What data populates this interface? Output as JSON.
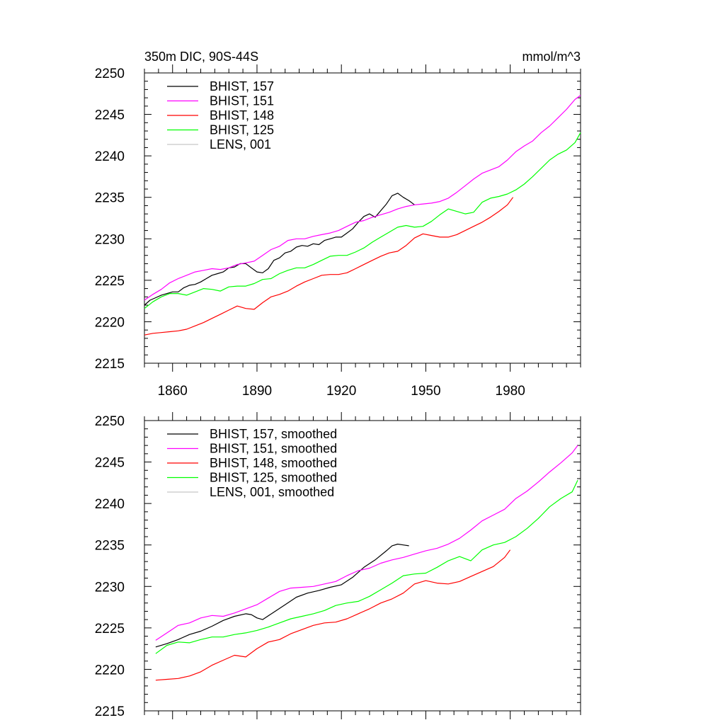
{
  "figure": {
    "title_left": "350m DIC, 90S-44S",
    "title_right": "mmol/m^3"
  },
  "chart_data": [
    {
      "type": "line",
      "xlim": [
        1850,
        2005
      ],
      "ylim": [
        2215,
        2250
      ],
      "x_ticks": [
        1860,
        1890,
        1920,
        1950,
        1980
      ],
      "x_tick_labels": [
        "1860",
        "1890",
        "1920",
        "1950",
        "1980"
      ],
      "y_ticks": [
        2215,
        2220,
        2225,
        2230,
        2235,
        2240,
        2245,
        2250
      ],
      "y_tick_labels": [
        "2215",
        "2220",
        "2225",
        "2230",
        "2235",
        "2240",
        "2245",
        "2250"
      ],
      "legend_position": "top-left",
      "grid": false,
      "series": [
        {
          "name": "BHIST, 157",
          "color": "#000000",
          "x": [
            1850,
            1852,
            1854,
            1856,
            1858,
            1860,
            1862,
            1864,
            1866,
            1868,
            1870,
            1872,
            1874,
            1876,
            1878,
            1880,
            1882,
            1884,
            1886,
            1888,
            1890,
            1892,
            1894,
            1896,
            1898,
            1900,
            1902,
            1904,
            1906,
            1908,
            1910,
            1912,
            1914,
            1916,
            1918,
            1920,
            1922,
            1924,
            1926,
            1928,
            1930,
            1932,
            1934,
            1936,
            1938,
            1940,
            1942,
            1944,
            1946
          ],
          "y": [
            2222.0,
            2222.6,
            2222.9,
            2223.2,
            2223.4,
            2223.6,
            2223.6,
            2224.1,
            2224.4,
            2224.5,
            2224.8,
            2225.2,
            2225.6,
            2225.8,
            2226.0,
            2226.5,
            2226.6,
            2227.0,
            2227.0,
            2226.5,
            2226.0,
            2225.9,
            2226.4,
            2227.4,
            2227.7,
            2228.3,
            2228.5,
            2229.0,
            2229.2,
            2229.1,
            2229.4,
            2229.3,
            2229.8,
            2230.0,
            2230.2,
            2230.2,
            2230.7,
            2231.2,
            2232.0,
            2232.7,
            2233.0,
            2232.6,
            2233.4,
            2234.2,
            2235.2,
            2235.5,
            2235.0,
            2234.6,
            2234.1
          ]
        },
        {
          "name": "BHIST, 151",
          "color": "#ff00ff",
          "x": [
            1850,
            1853,
            1856,
            1859,
            1862,
            1865,
            1868,
            1871,
            1874,
            1877,
            1880,
            1883,
            1886,
            1889,
            1892,
            1895,
            1898,
            1901,
            1904,
            1907,
            1910,
            1913,
            1916,
            1919,
            1922,
            1925,
            1928,
            1931,
            1934,
            1937,
            1940,
            1943,
            1946,
            1949,
            1952,
            1955,
            1958,
            1961,
            1964,
            1967,
            1970,
            1973,
            1976,
            1979,
            1982,
            1985,
            1988,
            1991,
            1994,
            1997,
            2000,
            2003,
            2005
          ],
          "y": [
            2222.6,
            2223.3,
            2223.9,
            2224.7,
            2225.2,
            2225.6,
            2226.0,
            2226.2,
            2226.4,
            2226.3,
            2226.5,
            2226.9,
            2227.1,
            2227.3,
            2228.0,
            2228.7,
            2229.1,
            2229.8,
            2230.0,
            2230.0,
            2230.3,
            2230.5,
            2230.7,
            2231.0,
            2231.5,
            2232.0,
            2232.2,
            2232.6,
            2232.9,
            2233.2,
            2233.6,
            2233.9,
            2234.1,
            2234.2,
            2234.3,
            2234.5,
            2234.9,
            2235.6,
            2236.4,
            2237.2,
            2237.9,
            2238.3,
            2238.7,
            2239.5,
            2240.5,
            2241.2,
            2241.8,
            2242.8,
            2243.6,
            2244.6,
            2245.6,
            2246.8,
            2247.3
          ]
        },
        {
          "name": "BHIST, 148",
          "color": "#ff0000",
          "x": [
            1850,
            1853,
            1856,
            1859,
            1862,
            1865,
            1868,
            1871,
            1874,
            1877,
            1880,
            1883,
            1886,
            1889,
            1892,
            1895,
            1898,
            1901,
            1904,
            1907,
            1910,
            1913,
            1916,
            1919,
            1922,
            1925,
            1928,
            1931,
            1934,
            1937,
            1940,
            1943,
            1946,
            1949,
            1952,
            1955,
            1958,
            1961,
            1964,
            1967,
            1970,
            1973,
            1976,
            1979,
            1981
          ],
          "y": [
            2218.4,
            2218.6,
            2218.7,
            2218.8,
            2218.9,
            2219.1,
            2219.5,
            2219.9,
            2220.4,
            2220.9,
            2221.4,
            2221.9,
            2221.6,
            2221.5,
            2222.3,
            2223.0,
            2223.3,
            2223.7,
            2224.3,
            2224.8,
            2225.2,
            2225.6,
            2225.7,
            2225.7,
            2225.9,
            2226.4,
            2226.9,
            2227.4,
            2227.9,
            2228.3,
            2228.5,
            2229.2,
            2230.1,
            2230.6,
            2230.4,
            2230.2,
            2230.2,
            2230.5,
            2231.0,
            2231.5,
            2232.0,
            2232.6,
            2233.3,
            2234.1,
            2235.0
          ]
        },
        {
          "name": "BHIST, 125",
          "color": "#00ff00",
          "x": [
            1850,
            1853,
            1856,
            1859,
            1862,
            1865,
            1868,
            1871,
            1874,
            1877,
            1880,
            1883,
            1886,
            1889,
            1892,
            1895,
            1898,
            1901,
            1904,
            1907,
            1910,
            1913,
            1916,
            1919,
            1922,
            1925,
            1928,
            1931,
            1934,
            1937,
            1940,
            1943,
            1946,
            1949,
            1952,
            1955,
            1958,
            1961,
            1964,
            1967,
            1970,
            1973,
            1976,
            1979,
            1982,
            1985,
            1988,
            1991,
            1994,
            1997,
            2000,
            2003,
            2005
          ],
          "y": [
            2221.6,
            2222.4,
            2223.0,
            2223.4,
            2223.4,
            2223.2,
            2223.6,
            2224.0,
            2223.9,
            2223.7,
            2224.2,
            2224.3,
            2224.3,
            2224.6,
            2225.1,
            2225.2,
            2225.8,
            2226.2,
            2226.5,
            2226.5,
            2226.9,
            2227.4,
            2227.9,
            2228.0,
            2228.0,
            2228.4,
            2228.9,
            2229.6,
            2230.2,
            2230.8,
            2231.4,
            2231.6,
            2231.4,
            2231.5,
            2232.1,
            2232.9,
            2233.6,
            2233.3,
            2233.0,
            2233.2,
            2234.4,
            2234.9,
            2235.1,
            2235.4,
            2235.9,
            2236.6,
            2237.5,
            2238.5,
            2239.5,
            2240.2,
            2240.7,
            2241.6,
            2242.8
          ]
        },
        {
          "name": "LENS, 001",
          "color": "#c8c8c8",
          "x": [],
          "y": []
        }
      ]
    },
    {
      "type": "line",
      "xlim": [
        1850,
        2005
      ],
      "ylim": [
        2215,
        2250
      ],
      "x_ticks": [
        1860,
        1890,
        1920,
        1950,
        1980
      ],
      "y_ticks": [
        2215,
        2220,
        2225,
        2230,
        2235,
        2240,
        2245,
        2250
      ],
      "y_tick_labels": [
        "2215",
        "2220",
        "2225",
        "2230",
        "2235",
        "2240",
        "2245",
        "2250"
      ],
      "legend_position": "top-left",
      "grid": false,
      "series": [
        {
          "name": "BHIST, 157, smoothed",
          "color": "#000000",
          "x": [
            1854,
            1858,
            1862,
            1866,
            1870,
            1874,
            1878,
            1882,
            1886,
            1888,
            1890,
            1892,
            1896,
            1900,
            1904,
            1908,
            1912,
            1916,
            1920,
            1924,
            1928,
            1932,
            1936,
            1938,
            1940,
            1942,
            1944
          ],
          "y": [
            2222.7,
            2223.1,
            2223.6,
            2224.2,
            2224.6,
            2225.2,
            2225.9,
            2226.4,
            2226.7,
            2226.6,
            2226.2,
            2226.0,
            2226.9,
            2227.8,
            2228.7,
            2229.2,
            2229.5,
            2229.9,
            2230.2,
            2231.1,
            2232.3,
            2233.2,
            2234.3,
            2234.9,
            2235.1,
            2235.0,
            2234.9
          ]
        },
        {
          "name": "BHIST, 151, smoothed",
          "color": "#ff00ff",
          "x": [
            1854,
            1858,
            1862,
            1866,
            1870,
            1874,
            1878,
            1882,
            1886,
            1890,
            1894,
            1898,
            1902,
            1906,
            1910,
            1914,
            1918,
            1922,
            1926,
            1930,
            1934,
            1938,
            1942,
            1946,
            1950,
            1954,
            1958,
            1962,
            1966,
            1970,
            1974,
            1978,
            1982,
            1986,
            1990,
            1994,
            1998,
            2002,
            2004
          ],
          "y": [
            2223.5,
            2224.4,
            2225.3,
            2225.6,
            2226.2,
            2226.5,
            2226.4,
            2226.8,
            2227.3,
            2227.8,
            2228.6,
            2229.4,
            2229.8,
            2229.9,
            2230.0,
            2230.3,
            2230.6,
            2231.3,
            2231.9,
            2232.2,
            2232.8,
            2233.2,
            2233.5,
            2233.9,
            2234.3,
            2234.6,
            2235.1,
            2235.8,
            2236.8,
            2237.9,
            2238.6,
            2239.3,
            2240.6,
            2241.5,
            2242.6,
            2243.8,
            2244.9,
            2246.1,
            2247.0
          ]
        },
        {
          "name": "BHIST, 148, smoothed",
          "color": "#ff0000",
          "x": [
            1854,
            1858,
            1862,
            1866,
            1870,
            1874,
            1878,
            1882,
            1886,
            1890,
            1894,
            1898,
            1902,
            1906,
            1910,
            1914,
            1918,
            1922,
            1926,
            1930,
            1934,
            1938,
            1942,
            1946,
            1950,
            1954,
            1958,
            1962,
            1966,
            1970,
            1974,
            1978,
            1980
          ],
          "y": [
            2218.7,
            2218.8,
            2218.9,
            2219.2,
            2219.7,
            2220.5,
            2221.1,
            2221.7,
            2221.5,
            2222.5,
            2223.3,
            2223.6,
            2224.3,
            2224.8,
            2225.3,
            2225.6,
            2225.7,
            2226.1,
            2226.7,
            2227.3,
            2228.0,
            2228.5,
            2229.2,
            2230.3,
            2230.7,
            2230.4,
            2230.3,
            2230.6,
            2231.2,
            2231.8,
            2232.4,
            2233.5,
            2234.4
          ]
        },
        {
          "name": "BHIST, 125, smoothed",
          "color": "#00ff00",
          "x": [
            1854,
            1858,
            1862,
            1866,
            1870,
            1874,
            1878,
            1882,
            1886,
            1890,
            1894,
            1898,
            1902,
            1906,
            1910,
            1914,
            1918,
            1922,
            1926,
            1930,
            1934,
            1938,
            1942,
            1946,
            1950,
            1954,
            1958,
            1962,
            1966,
            1970,
            1974,
            1978,
            1982,
            1986,
            1990,
            1994,
            1998,
            2002,
            2004
          ],
          "y": [
            2221.9,
            2222.9,
            2223.3,
            2223.2,
            2223.6,
            2223.9,
            2223.9,
            2224.2,
            2224.4,
            2224.7,
            2225.1,
            2225.6,
            2226.1,
            2226.4,
            2226.7,
            2227.1,
            2227.7,
            2228.0,
            2228.2,
            2228.8,
            2229.6,
            2230.4,
            2231.3,
            2231.5,
            2231.6,
            2232.3,
            2233.1,
            2233.6,
            2233.1,
            2234.4,
            2235.0,
            2235.3,
            2236.0,
            2237.0,
            2238.2,
            2239.6,
            2240.6,
            2241.4,
            2242.8
          ]
        },
        {
          "name": "LENS, 001, smoothed",
          "color": "#c8c8c8",
          "x": [],
          "y": []
        }
      ]
    }
  ]
}
